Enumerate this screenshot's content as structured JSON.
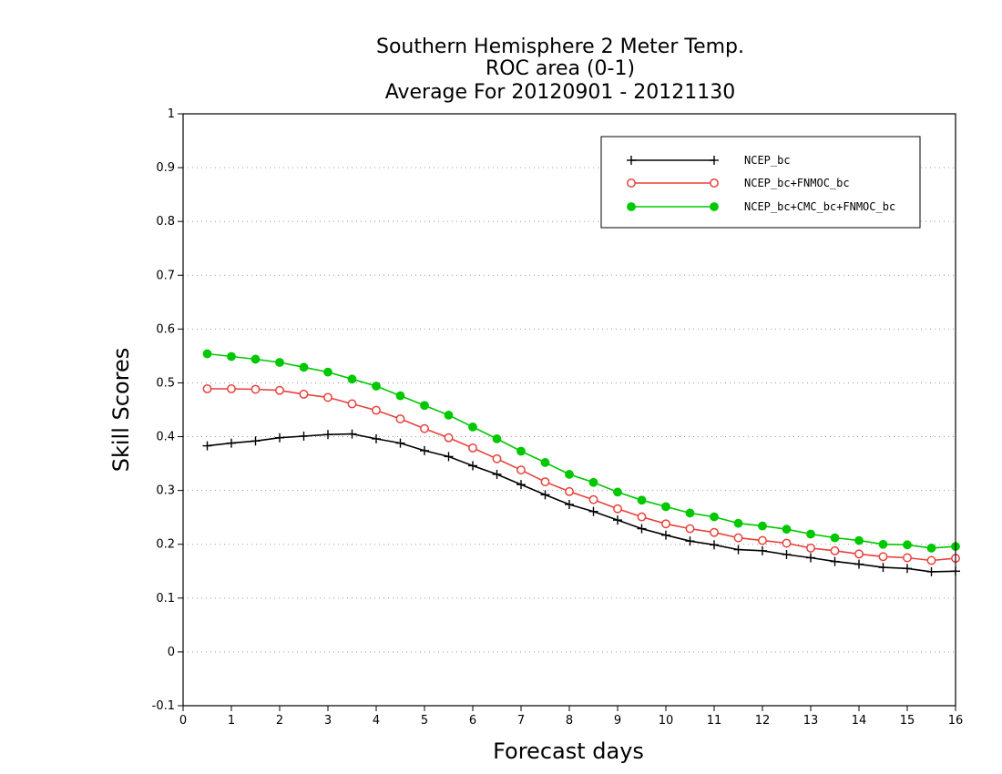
{
  "chart_data": {
    "type": "line",
    "title_lines": [
      "Southern Hemisphere 2 Meter Temp.",
      "ROC area (0-1)",
      "Average For 20120901 - 20121130"
    ],
    "xlabel": "Forecast days",
    "ylabel": "Skill Scores",
    "xlim": [
      0,
      16
    ],
    "ylim": [
      -0.1,
      1
    ],
    "xticks": [
      "0",
      "1",
      "2",
      "3",
      "4",
      "5",
      "6",
      "7",
      "8",
      "9",
      "10",
      "11",
      "12",
      "13",
      "14",
      "15",
      "16"
    ],
    "yticks": [
      "-0.1",
      "0",
      "0.1",
      "0.2",
      "0.3",
      "0.4",
      "0.5",
      "0.6",
      "0.7",
      "0.8",
      "0.9",
      "1"
    ],
    "grid": "horizontal dotted",
    "legend_position": "top-right",
    "x": [
      0.5,
      1,
      1.5,
      2,
      2.5,
      3,
      3.5,
      4,
      4.5,
      5,
      5.5,
      6,
      6.5,
      7,
      7.5,
      8,
      8.5,
      9,
      9.5,
      10,
      10.5,
      11,
      11.5,
      12,
      12.5,
      13,
      13.5,
      14,
      14.5,
      15,
      15.5,
      16
    ],
    "series": [
      {
        "name": "NCEP_bc",
        "color": "#000000",
        "marker": "plus",
        "values": [
          0.383,
          0.388,
          0.392,
          0.398,
          0.401,
          0.404,
          0.405,
          0.396,
          0.388,
          0.374,
          0.363,
          0.346,
          0.33,
          0.311,
          0.292,
          0.274,
          0.261,
          0.245,
          0.229,
          0.217,
          0.206,
          0.199,
          0.19,
          0.188,
          0.181,
          0.175,
          0.168,
          0.163,
          0.157,
          0.155,
          0.149,
          0.15
        ]
      },
      {
        "name": "NCEP_bc+FNMOC_bc",
        "color": "#e8403a",
        "marker": "open-circle",
        "values": [
          0.489,
          0.489,
          0.488,
          0.486,
          0.479,
          0.473,
          0.461,
          0.449,
          0.433,
          0.415,
          0.398,
          0.379,
          0.359,
          0.338,
          0.316,
          0.298,
          0.283,
          0.266,
          0.251,
          0.238,
          0.229,
          0.222,
          0.212,
          0.207,
          0.202,
          0.193,
          0.188,
          0.182,
          0.177,
          0.175,
          0.17,
          0.174
        ]
      },
      {
        "name": "NCEP_bc+CMC_bc+FNMOC_bc",
        "color": "#00c800",
        "marker": "filled-circle",
        "values": [
          0.554,
          0.549,
          0.544,
          0.538,
          0.529,
          0.52,
          0.507,
          0.494,
          0.476,
          0.458,
          0.44,
          0.418,
          0.396,
          0.373,
          0.352,
          0.33,
          0.315,
          0.297,
          0.282,
          0.27,
          0.258,
          0.251,
          0.239,
          0.234,
          0.228,
          0.219,
          0.212,
          0.207,
          0.2,
          0.199,
          0.193,
          0.196
        ]
      }
    ]
  }
}
